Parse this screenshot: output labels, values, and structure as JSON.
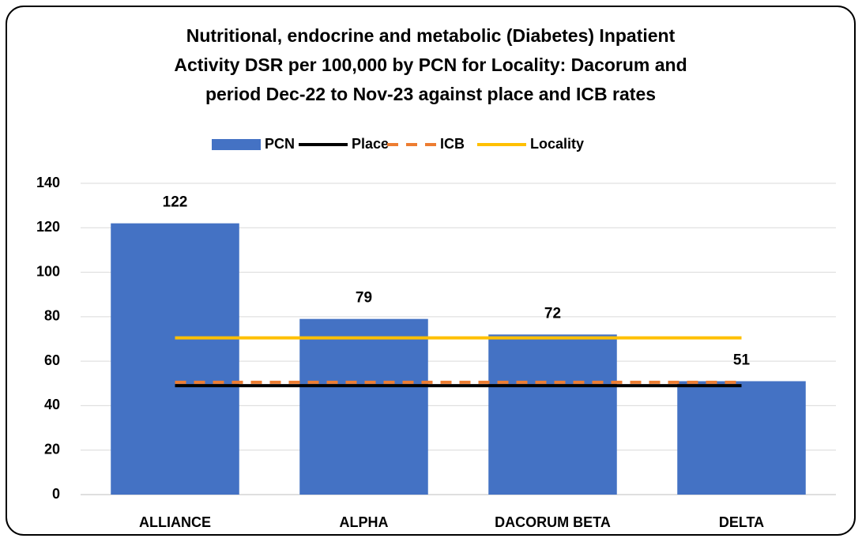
{
  "chart_data": {
    "type": "bar",
    "title_lines": [
      "Nutritional, endocrine and metabolic (Diabetes) Inpatient",
      "Activity DSR per 100,000 by PCN for Locality: Dacorum and",
      "period Dec-22 to Nov-23 against place and ICB rates"
    ],
    "categories": [
      "ALLIANCE",
      "ALPHA",
      "DACORUM BETA",
      "DELTA"
    ],
    "series": [
      {
        "name": "PCN",
        "type": "bar",
        "color": "#4472c4",
        "values": [
          122,
          79,
          72,
          51
        ]
      },
      {
        "name": "Place",
        "type": "line",
        "color": "#000000",
        "values": [
          49,
          49,
          49,
          49
        ]
      },
      {
        "name": "ICB",
        "type": "line",
        "color": "#ed7d31",
        "dashed": true,
        "values": [
          50.5,
          50.5,
          50.5,
          50.5
        ]
      },
      {
        "name": "Locality",
        "type": "line",
        "color": "#ffc000",
        "values": [
          70.5,
          70.5,
          70.5,
          70.5
        ]
      }
    ],
    "ylim": [
      0,
      140
    ],
    "yticks": [
      0,
      20,
      40,
      60,
      80,
      100,
      120,
      140
    ],
    "grid": true,
    "legend": "top"
  }
}
